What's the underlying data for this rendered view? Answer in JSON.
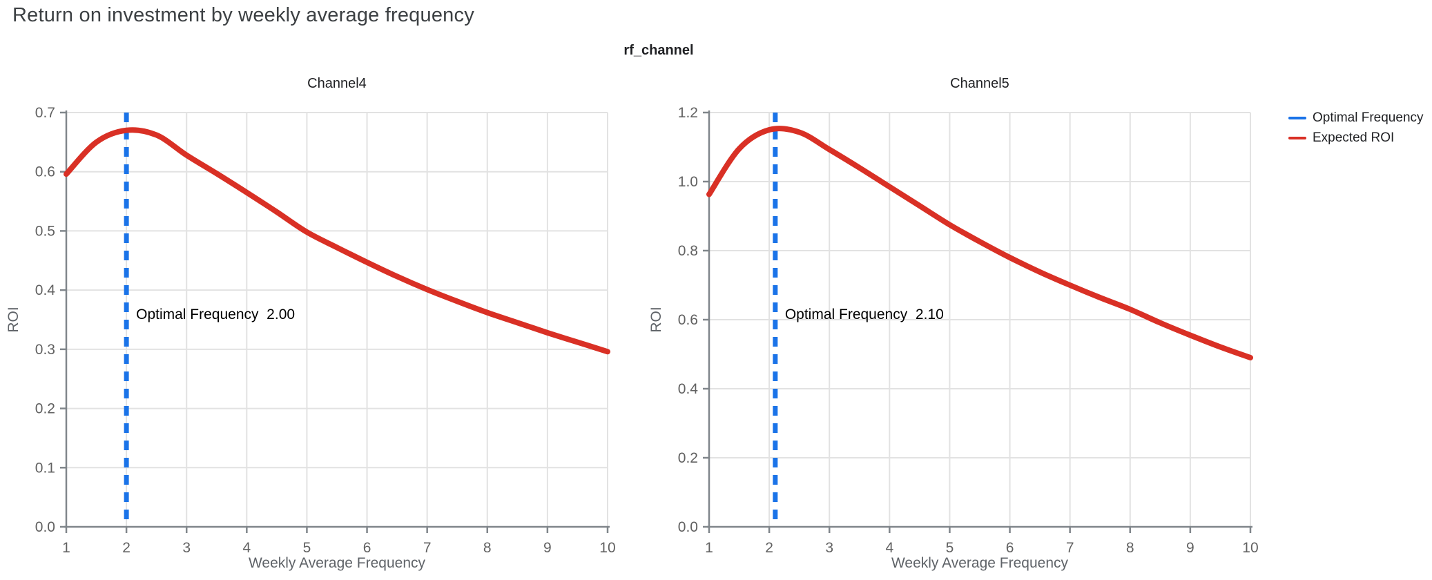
{
  "page_title": "Return on investment by weekly average frequency",
  "facet_title": "rf_channel",
  "colors": {
    "optimal_frequency": "#1a73e8",
    "expected_roi": "#d93025",
    "grid": "#e2e2e2",
    "axis": "#80868b",
    "tick_text": "#616161",
    "axis_title_text": "#5f6368",
    "facet_text": "#202124",
    "page_title_text": "#3c4043"
  },
  "legend": {
    "items": [
      {
        "label": "Optimal Frequency",
        "color": "#1a73e8"
      },
      {
        "label": "Expected ROI",
        "color": "#d93025"
      }
    ]
  },
  "chart_data": [
    {
      "type": "line",
      "title": "Channel4",
      "xlabel": "Weekly Average Frequency",
      "ylabel": "ROI",
      "xlim": [
        1,
        10
      ],
      "ylim": [
        0,
        0.7
      ],
      "x_ticks": [
        "1",
        "2",
        "3",
        "4",
        "5",
        "6",
        "7",
        "8",
        "9",
        "10"
      ],
      "y_ticks": [
        "0.0",
        "0.1",
        "0.2",
        "0.3",
        "0.4",
        "0.5",
        "0.6",
        "0.7"
      ],
      "grid": true,
      "legend_position": "top-right-outside",
      "optimal_frequency": 2.0,
      "annotation_label": "Optimal Frequency",
      "annotation_value": "2.00",
      "series": [
        {
          "name": "Expected ROI",
          "color": "#d93025",
          "x": [
            1,
            1.5,
            2,
            2.5,
            3,
            3.5,
            4,
            4.5,
            5,
            5.5,
            6,
            6.5,
            7,
            7.5,
            8,
            8.5,
            9,
            9.5,
            10
          ],
          "y": [
            0.596,
            0.65,
            0.67,
            0.662,
            0.628,
            0.597,
            0.565,
            0.532,
            0.498,
            0.472,
            0.447,
            0.423,
            0.401,
            0.381,
            0.362,
            0.345,
            0.328,
            0.312,
            0.296
          ]
        },
        {
          "name": "Optimal Frequency",
          "color": "#1a73e8",
          "style": "dashed-vertical-line",
          "x": 2.0
        }
      ]
    },
    {
      "type": "line",
      "title": "Channel5",
      "xlabel": "Weekly Average Frequency",
      "ylabel": "ROI",
      "xlim": [
        1,
        10
      ],
      "ylim": [
        0,
        1.2
      ],
      "x_ticks": [
        "1",
        "2",
        "3",
        "4",
        "5",
        "6",
        "7",
        "8",
        "9",
        "10"
      ],
      "y_ticks": [
        "0.0",
        "0.2",
        "0.4",
        "0.6",
        "0.8",
        "1.0",
        "1.2"
      ],
      "grid": true,
      "legend_position": "top-right-outside",
      "optimal_frequency": 2.1,
      "annotation_label": "Optimal Frequency",
      "annotation_value": "2.10",
      "series": [
        {
          "name": "Expected ROI",
          "color": "#d93025",
          "x": [
            1,
            1.5,
            2,
            2.5,
            3,
            3.5,
            4,
            4.5,
            5,
            5.5,
            6,
            6.5,
            7,
            7.5,
            8,
            8.5,
            9,
            9.5,
            10
          ],
          "y": [
            0.963,
            1.095,
            1.15,
            1.143,
            1.093,
            1.04,
            0.985,
            0.93,
            0.875,
            0.826,
            0.78,
            0.738,
            0.7,
            0.664,
            0.63,
            0.591,
            0.555,
            0.521,
            0.49
          ]
        },
        {
          "name": "Optimal Frequency",
          "color": "#1a73e8",
          "style": "dashed-vertical-line",
          "x": 2.1
        }
      ]
    }
  ]
}
